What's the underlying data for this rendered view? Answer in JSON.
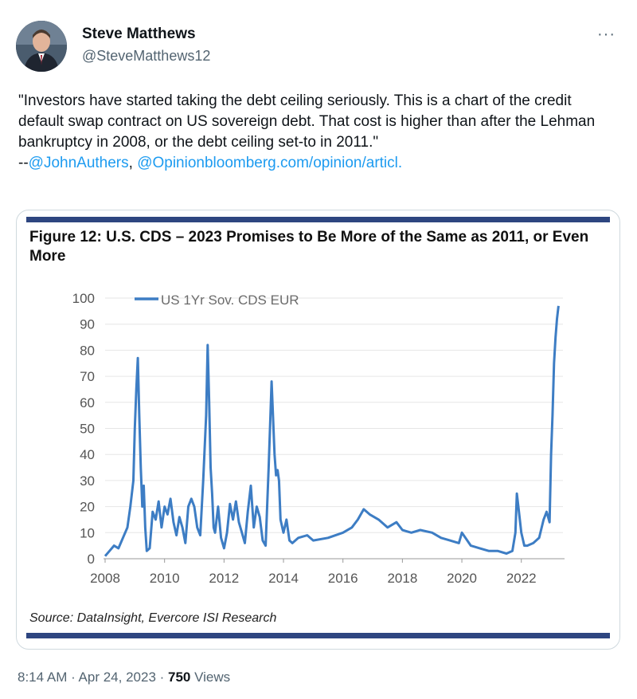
{
  "user": {
    "name": "Steve Matthews",
    "handle": "@SteveMatthews12"
  },
  "more_label": "···",
  "tweet": {
    "body": "\"Investors have started taking the debt ceiling seriously. This is a chart of the credit default swap contract on US sovereign debt. That cost is higher than after the Lehman bankruptcy in 2008, or the debt ceiling set-to in 2011.\"",
    "prefix": "--",
    "mention": "@JohnAuthers",
    "sep": ", ",
    "mention2": "@Opinion",
    "url": "bloomberg.com/opinion/articl."
  },
  "chart_data": {
    "type": "line",
    "title": "Figure 12: U.S. CDS – 2023 Promises to Be More of the Same as 2011, or Even More",
    "xlabel": "",
    "ylabel": "",
    "x_ticks": [
      "2008",
      "2010",
      "2012",
      "2014",
      "2016",
      "2018",
      "2020",
      "2022"
    ],
    "y_ticks": [
      "0",
      "10",
      "20",
      "30",
      "40",
      "50",
      "60",
      "70",
      "80",
      "90",
      "100"
    ],
    "xlim": [
      2008,
      2023.4
    ],
    "ylim": [
      0,
      100
    ],
    "grid": "horizontal",
    "legend": "top-left",
    "color": "#3d7dc4",
    "series": [
      {
        "name": "US 1Yr Sov. CDS EUR",
        "x": [
          2008.0,
          2008.15,
          2008.3,
          2008.45,
          2008.6,
          2008.75,
          2008.85,
          2008.95,
          2009.0,
          2009.05,
          2009.1,
          2009.15,
          2009.2,
          2009.25,
          2009.3,
          2009.35,
          2009.4,
          2009.5,
          2009.6,
          2009.7,
          2009.8,
          2009.9,
          2010.0,
          2010.1,
          2010.2,
          2010.3,
          2010.4,
          2010.5,
          2010.6,
          2010.7,
          2010.8,
          2010.9,
          2011.0,
          2011.1,
          2011.2,
          2011.3,
          2011.4,
          2011.45,
          2011.5,
          2011.55,
          2011.6,
          2011.65,
          2011.7,
          2011.8,
          2011.9,
          2012.0,
          2012.1,
          2012.2,
          2012.3,
          2012.4,
          2012.5,
          2012.6,
          2012.7,
          2012.8,
          2012.9,
          2013.0,
          2013.1,
          2013.2,
          2013.3,
          2013.4,
          2013.5,
          2013.6,
          2013.7,
          2013.75,
          2013.8,
          2013.85,
          2013.9,
          2014.0,
          2014.1,
          2014.2,
          2014.3,
          2014.5,
          2014.8,
          2015.0,
          2015.5,
          2016.0,
          2016.3,
          2016.5,
          2016.7,
          2016.9,
          2017.2,
          2017.5,
          2017.8,
          2018.0,
          2018.3,
          2018.6,
          2019.0,
          2019.3,
          2019.6,
          2019.9,
          2020.0,
          2020.3,
          2020.6,
          2020.9,
          2021.2,
          2021.5,
          2021.7,
          2021.8,
          2021.85,
          2021.9,
          2022.0,
          2022.1,
          2022.2,
          2022.4,
          2022.6,
          2022.75,
          2022.85,
          2022.95,
          2023.0,
          2023.05,
          2023.1,
          2023.15,
          2023.2,
          2023.25
        ],
        "values": [
          1,
          3,
          5,
          4,
          8,
          12,
          20,
          30,
          50,
          65,
          77,
          55,
          35,
          20,
          28,
          12,
          3,
          4,
          18,
          15,
          22,
          12,
          20,
          17,
          23,
          14,
          9,
          16,
          12,
          6,
          20,
          23,
          20,
          12,
          9,
          30,
          55,
          82,
          60,
          35,
          25,
          12,
          10,
          20,
          8,
          4,
          10,
          21,
          15,
          22,
          14,
          10,
          6,
          18,
          28,
          12,
          20,
          16,
          7,
          5,
          35,
          68,
          40,
          32,
          34,
          30,
          15,
          10,
          15,
          7,
          6,
          8,
          9,
          7,
          8,
          10,
          12,
          15,
          19,
          17,
          15,
          12,
          14,
          11,
          10,
          11,
          10,
          8,
          7,
          6,
          10,
          5,
          4,
          3,
          3,
          2,
          3,
          10,
          25,
          20,
          10,
          5,
          5,
          6,
          8,
          15,
          18,
          14,
          40,
          55,
          75,
          85,
          92,
          97
        ]
      }
    ],
    "source": "Source: DataInsight, Evercore ISI Research"
  },
  "footer": {
    "time": "8:14 AM · Apr 24, 2023 · ",
    "views_count": "750",
    "views_label": " Views"
  }
}
